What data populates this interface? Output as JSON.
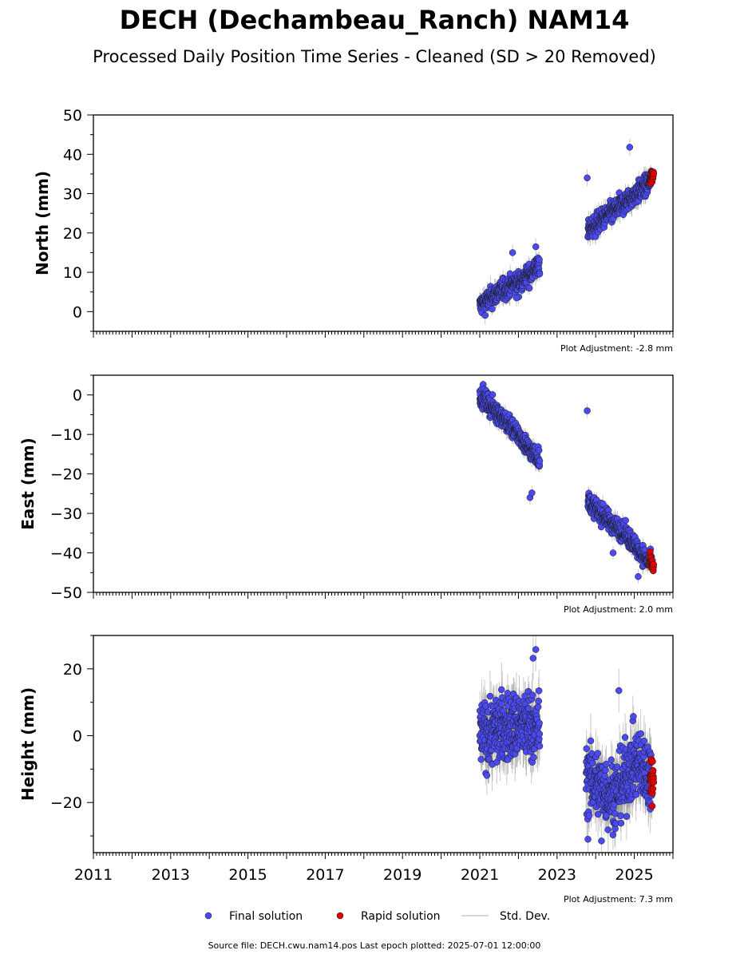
{
  "chart_data": {
    "type": "scatter",
    "title": "DECH (Dechambeau_Ranch) NAM14",
    "subtitle": "Processed Daily Position Time Series - Cleaned (SD > 20 Removed)",
    "x_axis": {
      "range": [
        2011,
        2026
      ],
      "tick_labels": [
        "2011",
        "2013",
        "2015",
        "2017",
        "2019",
        "2021",
        "2023",
        "2025"
      ],
      "tick_values": [
        2011,
        2013,
        2015,
        2017,
        2019,
        2021,
        2023,
        2025
      ]
    },
    "legend": {
      "placement": "bottom-center",
      "entries": [
        {
          "label": "Final solution",
          "color": "#4a4af0"
        },
        {
          "label": "Rapid solution",
          "color": "#e00000"
        },
        {
          "label": "Std. Dev.",
          "color": "#c8c8c8"
        }
      ]
    },
    "footer": "Source file: DECH.cwu.nam14.pos  Last epoch plotted: 2025-07-01 12:00:00",
    "panels": [
      {
        "ylabel": "North (mm)",
        "ylim": [
          -5,
          50
        ],
        "yticks": [
          0,
          10,
          20,
          30,
          40,
          50
        ],
        "ytick_labels": [
          "0",
          "10",
          "20",
          "30",
          "40",
          "50"
        ],
        "adjustment": "Plot Adjustment: -2.8 mm",
        "series": [
          {
            "name": "Final solution",
            "segments": [
              {
                "x": [
                  2021.0,
                  2021.5,
                  2022.0,
                  2022.3,
                  2022.55
                ],
                "y": [
                  1.5,
                  5.0,
                  7.5,
                  9.5,
                  12.0
                ]
              },
              {
                "x": [
                  2023.8,
                  2024.3,
                  2024.8,
                  2025.3,
                  2025.45
                ],
                "y": [
                  20.5,
                  24.5,
                  28.0,
                  32.0,
                  33.5
                ]
              }
            ],
            "noise": 1.3,
            "sd": 1.8,
            "outliers": [
              {
                "x": 2023.78,
                "y": 34.0
              },
              {
                "x": 2024.88,
                "y": 41.8
              },
              {
                "x": 2021.85,
                "y": 15.0
              },
              {
                "x": 2022.45,
                "y": 16.5
              },
              {
                "x": 2021.95,
                "y": 3.5
              }
            ]
          },
          {
            "name": "Rapid solution",
            "segments": [
              {
                "x": [
                  2025.4,
                  2025.5
                ],
                "y": [
                  33.5,
                  35.0
                ]
              }
            ],
            "noise": 0.8,
            "sd": 0.8,
            "outliers": []
          }
        ]
      },
      {
        "ylabel": "East (mm)",
        "ylim": [
          -50,
          5
        ],
        "yticks": [
          0,
          -10,
          -20,
          -30,
          -40,
          -50
        ],
        "ytick_labels": [
          "0",
          "−10",
          "−20",
          "−30",
          "−40",
          "−50"
        ],
        "adjustment": "Plot Adjustment: 2.0 mm",
        "series": [
          {
            "name": "Final solution",
            "segments": [
              {
                "x": [
                  2021.0,
                  2021.5,
                  2022.0,
                  2022.3,
                  2022.55
                ],
                "y": [
                  0.0,
                  -5.0,
                  -10.0,
                  -14.0,
                  -16.0
                ]
              },
              {
                "x": [
                  2023.8,
                  2024.3,
                  2024.8,
                  2025.3,
                  2025.45
                ],
                "y": [
                  -27.0,
                  -31.5,
                  -35.5,
                  -41.5,
                  -43.0
                ]
              }
            ],
            "noise": 1.2,
            "sd": 1.5,
            "outliers": [
              {
                "x": 2023.78,
                "y": -4.0
              },
              {
                "x": 2022.3,
                "y": -26.0
              },
              {
                "x": 2022.35,
                "y": -24.8
              },
              {
                "x": 2024.45,
                "y": -40.0
              },
              {
                "x": 2025.1,
                "y": -46.0
              }
            ]
          },
          {
            "name": "Rapid solution",
            "segments": [
              {
                "x": [
                  2025.4,
                  2025.5
                ],
                "y": [
                  -41.5,
                  -44.0
                ]
              }
            ],
            "noise": 0.8,
            "sd": 0.8,
            "outliers": []
          }
        ]
      },
      {
        "ylabel": "Height (mm)",
        "ylim": [
          -35,
          30
        ],
        "yticks": [
          20,
          0,
          -20
        ],
        "ytick_labels": [
          "20",
          "0",
          "−20"
        ],
        "adjustment": "Plot Adjustment: 7.3 mm",
        "series": [
          {
            "name": "Final solution",
            "segments": [
              {
                "x": [
                  2021.0,
                  2021.5,
                  2022.0,
                  2022.55
                ],
                "y": [
                  0.0,
                  2.0,
                  3.0,
                  2.0
                ]
              },
              {
                "x": [
                  2023.75,
                  2024.2,
                  2024.5,
                  2025.0,
                  2025.45
                ],
                "y": [
                  -12.0,
                  -16.0,
                  -18.0,
                  -8.0,
                  -12.0
                ]
              }
            ],
            "noise": 5.0,
            "sd": 5.5,
            "outliers": [
              {
                "x": 2022.45,
                "y": 25.8
              },
              {
                "x": 2022.38,
                "y": 23.2
              },
              {
                "x": 2024.6,
                "y": 13.5
              },
              {
                "x": 2023.8,
                "y": -31.0
              },
              {
                "x": 2024.15,
                "y": -31.5
              }
            ]
          },
          {
            "name": "Rapid solution",
            "segments": [
              {
                "x": [
                  2025.4,
                  2025.5
                ],
                "y": [
                  -10.0,
                  -14.0
                ]
              }
            ],
            "noise": 3.5,
            "sd": 1.5,
            "outliers": []
          }
        ]
      }
    ]
  }
}
